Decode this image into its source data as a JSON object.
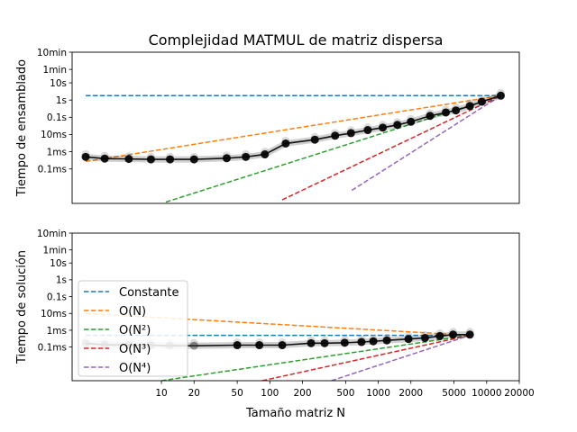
{
  "figure": {
    "title": "Complejidad MATMUL de matriz dispersa"
  },
  "chart_data": [
    {
      "type": "line",
      "title": "Complejidad MATMUL de matriz dispersa",
      "ylabel": "Tiempo de ensamblado",
      "xlabel": "",
      "xscale": "log",
      "yscale": "log",
      "xlim": [
        1.5,
        20000
      ],
      "ylim": [
        1e-06,
        600
      ],
      "yticks": [
        {
          "value": 0.0001,
          "label": "0.1ms"
        },
        {
          "value": 0.001,
          "label": "1ms"
        },
        {
          "value": 0.01,
          "label": "10ms"
        },
        {
          "value": 0.1,
          "label": "0.1s"
        },
        {
          "value": 1,
          "label": "1s"
        },
        {
          "value": 10,
          "label": "10s"
        },
        {
          "value": 60,
          "label": "1min"
        },
        {
          "value": 600,
          "label": "10min"
        }
      ],
      "measured": {
        "x": [
          2,
          3,
          5,
          8,
          12,
          20,
          40,
          60,
          90,
          140,
          260,
          400,
          560,
          800,
          1100,
          1500,
          2000,
          3000,
          4200,
          5200,
          7000,
          9000,
          13500
        ],
        "y": [
          0.0005,
          0.0004,
          0.00038,
          0.00036,
          0.00036,
          0.00036,
          0.00042,
          0.0005,
          0.0007,
          0.003,
          0.005,
          0.0085,
          0.012,
          0.018,
          0.025,
          0.036,
          0.055,
          0.12,
          0.19,
          0.25,
          0.45,
          0.8,
          1.8
        ]
      },
      "references": [
        {
          "name": "Constante",
          "color": "#1f77b4",
          "x": [
            2,
            13500
          ],
          "y": [
            1.8,
            1.8
          ]
        },
        {
          "name": "O(N)",
          "color": "#ff7f0e",
          "x": [
            2,
            13500
          ],
          "y": [
            0.00027,
            1.8
          ]
        },
        {
          "name": "O(N²)",
          "color": "#2ca02c",
          "x": [
            11,
            13500
          ],
          "y": [
            1.2e-06,
            1.8
          ]
        },
        {
          "name": "O(N³)",
          "color": "#d62728",
          "x": [
            130,
            13500
          ],
          "y": [
            1.6e-06,
            1.8
          ]
        },
        {
          "name": "O(N⁴)",
          "color": "#9467bd",
          "x": [
            570,
            13500
          ],
          "y": [
            5.7e-06,
            1.8
          ]
        }
      ]
    },
    {
      "type": "line",
      "title": "",
      "ylabel": "Tiempo de solución",
      "xlabel": "Tamaño matriz N",
      "xscale": "log",
      "yscale": "log",
      "xlim": [
        1.5,
        20000
      ],
      "ylim": [
        1e-06,
        600
      ],
      "xticks": [
        {
          "value": 10,
          "label": "10"
        },
        {
          "value": 20,
          "label": "20"
        },
        {
          "value": 50,
          "label": "50"
        },
        {
          "value": 100,
          "label": "100"
        },
        {
          "value": 200,
          "label": "200"
        },
        {
          "value": 500,
          "label": "500"
        },
        {
          "value": 1000,
          "label": "1000"
        },
        {
          "value": 2000,
          "label": "2000"
        },
        {
          "value": 5000,
          "label": "5000"
        },
        {
          "value": 10000,
          "label": "10000"
        },
        {
          "value": 20000,
          "label": "20000"
        }
      ],
      "yticks": [
        {
          "value": 0.0001,
          "label": "0.1ms"
        },
        {
          "value": 0.001,
          "label": "1ms"
        },
        {
          "value": 0.01,
          "label": "10ms"
        },
        {
          "value": 0.1,
          "label": "0.1s"
        },
        {
          "value": 1,
          "label": "1s"
        },
        {
          "value": 10,
          "label": "10s"
        },
        {
          "value": 60,
          "label": "1min"
        },
        {
          "value": 600,
          "label": "10min"
        }
      ],
      "legend": {
        "location": "lower-left",
        "entries": [
          "Constante",
          "O(N)",
          "O(N²)",
          "O(N³)",
          "O(N⁴)"
        ]
      },
      "measured": {
        "x": [
          2,
          3,
          5,
          8,
          12,
          20,
          50,
          80,
          130,
          240,
          320,
          490,
          700,
          900,
          1200,
          1900,
          2700,
          3700,
          4900,
          7000
        ],
        "y": [
          0.00016,
          0.00014,
          0.00013,
          0.00013,
          0.00012,
          0.00012,
          0.00013,
          0.00013,
          0.00013,
          0.00017,
          0.00017,
          0.00018,
          0.0002,
          0.00022,
          0.00025,
          0.0003,
          0.00035,
          0.00045,
          0.00055,
          0.00055
        ]
      },
      "references": [
        {
          "name": "Constante",
          "color": "#1f77b4",
          "x": [
            2,
            7000
          ],
          "y": [
            0.0005,
            0.0005
          ]
        },
        {
          "name": "O(N)",
          "color": "#ff7f0e",
          "x": [
            2,
            7000
          ],
          "y": [
            0.01,
            0.0005
          ]
        },
        {
          "name": "O(N²)",
          "color": "#2ca02c",
          "x": [
            10,
            7000
          ],
          "y": [
            1e-06,
            0.0005
          ]
        },
        {
          "name": "O(N³)",
          "color": "#d62728",
          "x": [
            85,
            7000
          ],
          "y": [
            1e-06,
            0.0005
          ]
        },
        {
          "name": "O(N⁴)",
          "color": "#9467bd",
          "x": [
            370,
            7000
          ],
          "y": [
            1e-06,
            0.0005
          ]
        }
      ]
    }
  ]
}
